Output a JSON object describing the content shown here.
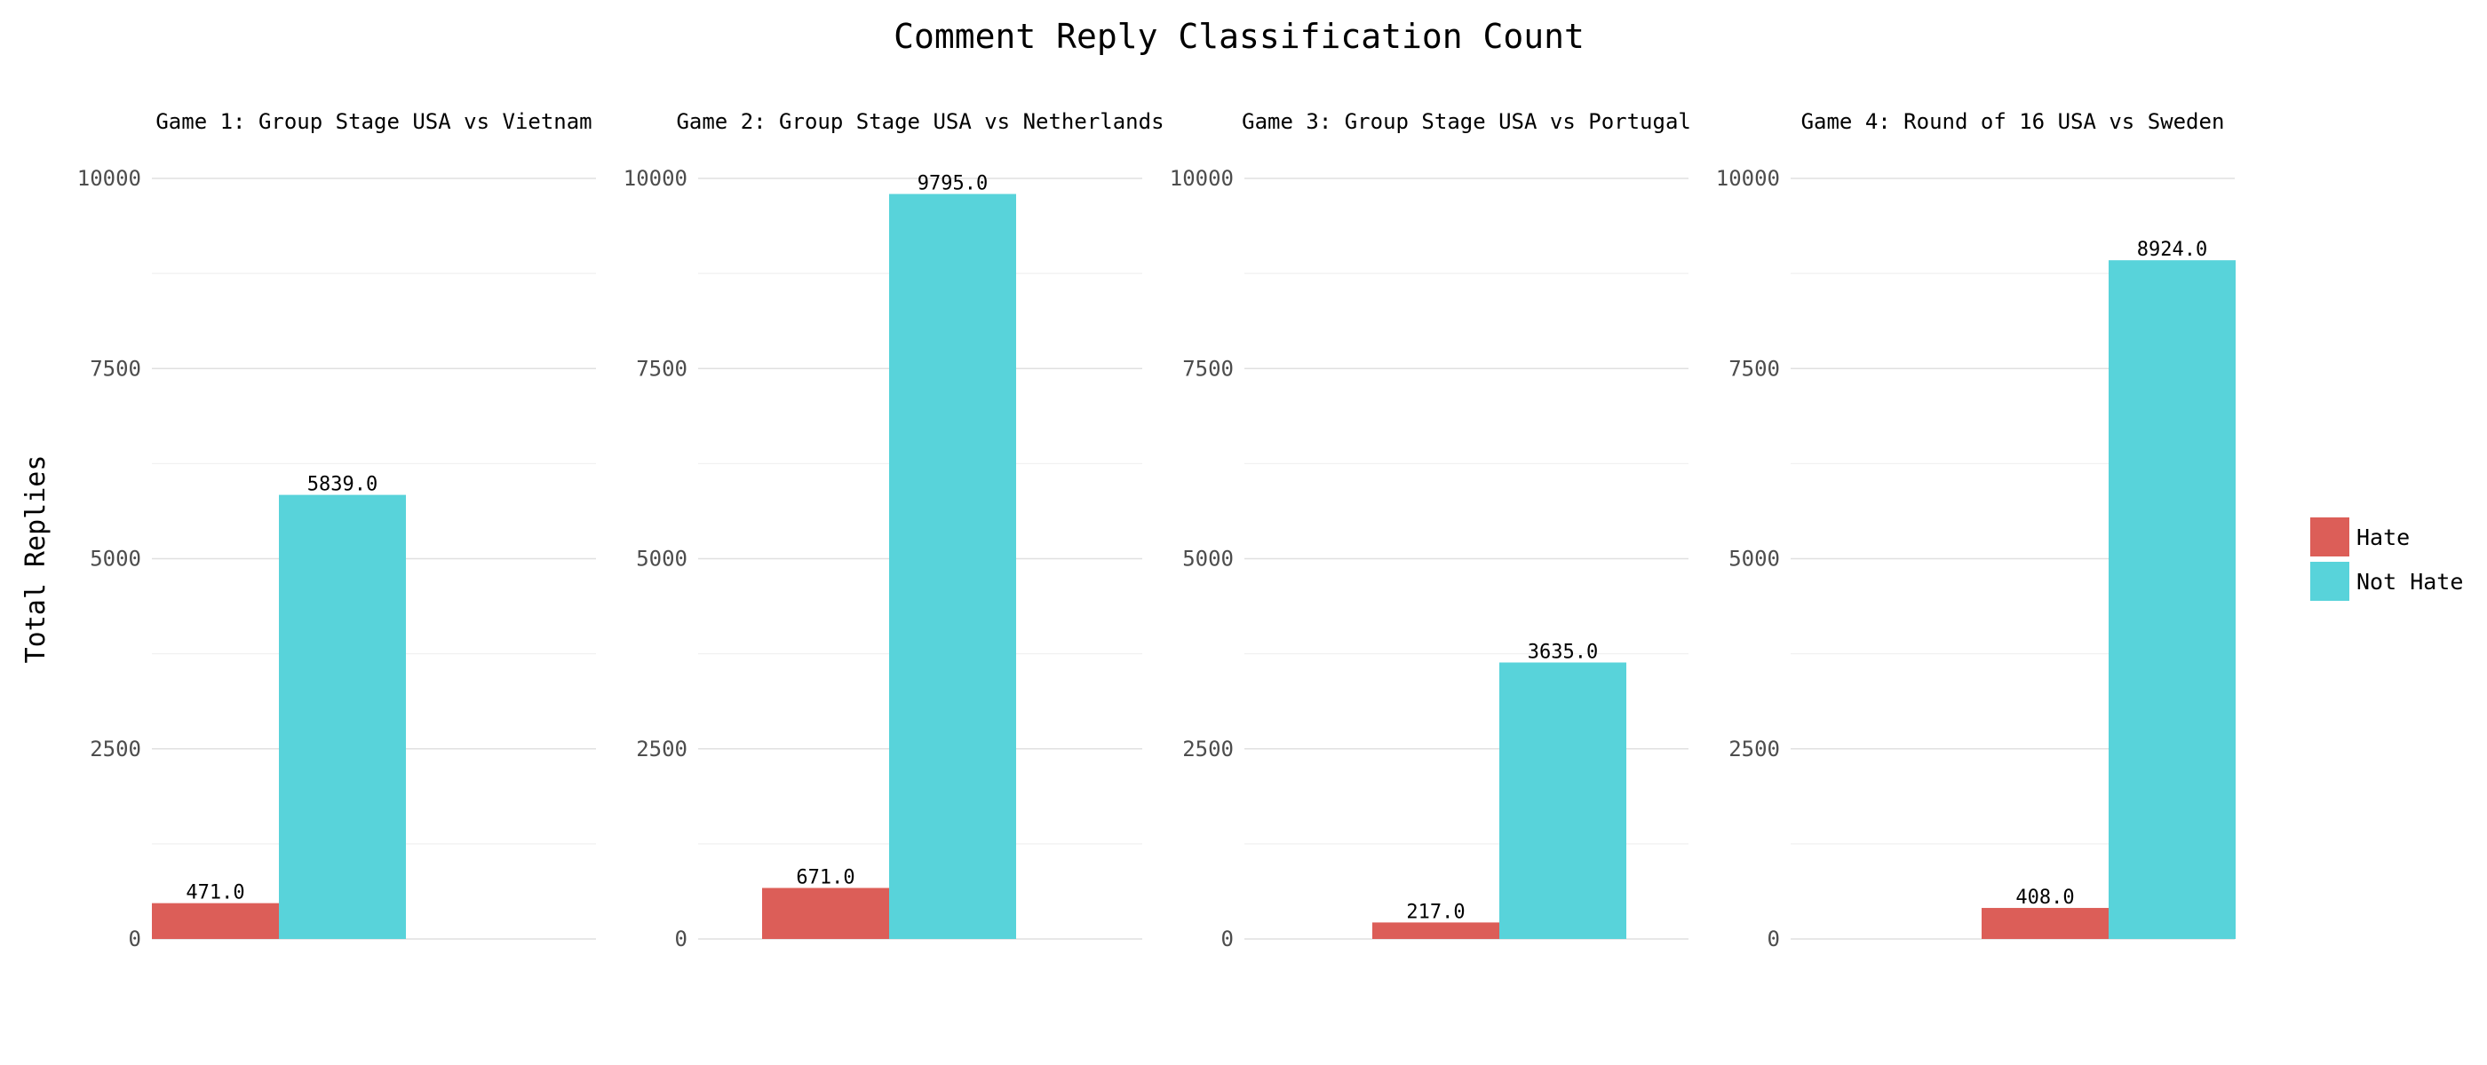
{
  "chart_data": {
    "type": "bar",
    "title": "Comment Reply Classification Count",
    "ylabel": "Total Replies",
    "xlabel": "",
    "ylim": [
      0,
      10000
    ],
    "yticks": [
      0,
      2500,
      5000,
      7500,
      10000
    ],
    "grid": true,
    "legend_position": "right",
    "legend": [
      {
        "name": "Hate",
        "color": "#dc5e58"
      },
      {
        "name": "Not Hate",
        "color": "#58d3da"
      }
    ],
    "panels": [
      {
        "title": "Game 1: Group Stage USA vs Vietnam",
        "bars": [
          {
            "series": "Hate",
            "value": 471,
            "label": "471.0"
          },
          {
            "series": "Not Hate",
            "value": 5839,
            "label": "5839.0"
          }
        ]
      },
      {
        "title": "Game 2: Group Stage USA vs Netherlands",
        "bars": [
          {
            "series": "Hate",
            "value": 671,
            "label": "671.0"
          },
          {
            "series": "Not Hate",
            "value": 9795,
            "label": "9795.0"
          }
        ]
      },
      {
        "title": "Game 3: Group Stage USA vs Portugal",
        "bars": [
          {
            "series": "Hate",
            "value": 217,
            "label": "217.0"
          },
          {
            "series": "Not Hate",
            "value": 3635,
            "label": "3635.0"
          }
        ]
      },
      {
        "title": "Game 4: Round of 16 USA vs Sweden",
        "bars": [
          {
            "series": "Hate",
            "value": 408,
            "label": "408.0"
          },
          {
            "series": "Not Hate",
            "value": 8924,
            "label": "8924.0"
          }
        ]
      }
    ]
  }
}
